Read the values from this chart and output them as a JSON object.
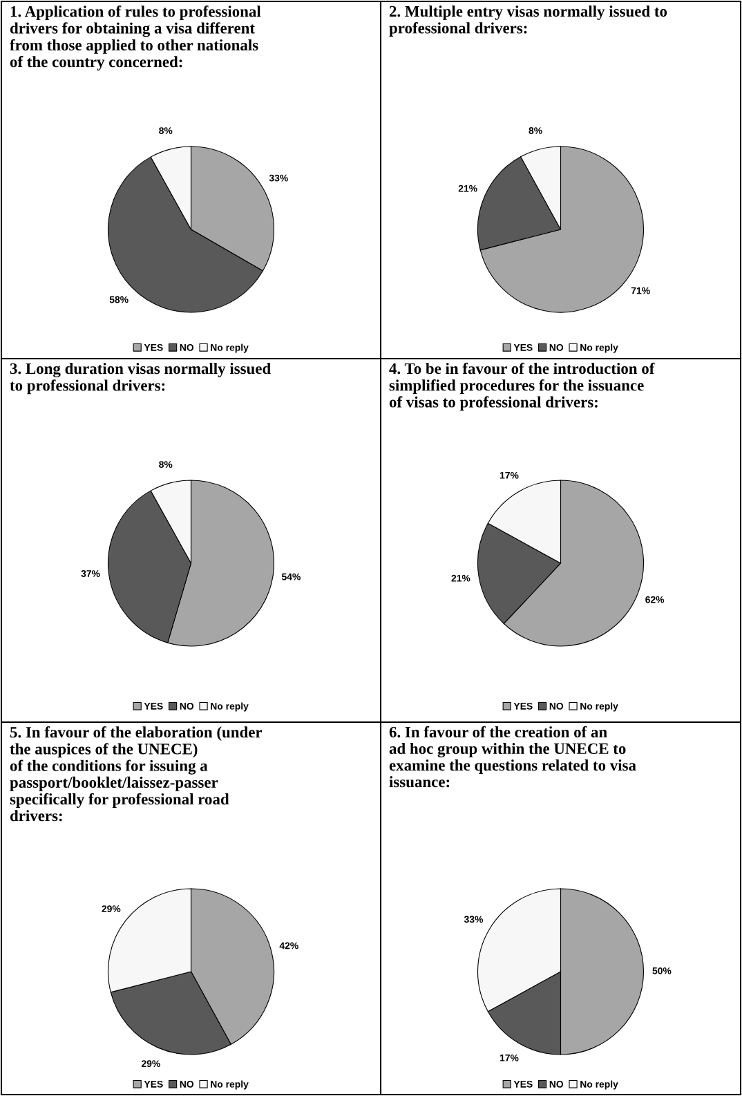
{
  "chart_data": [
    {
      "type": "pie",
      "title": "1. Application of rules to professional\ndrivers for obtaining a visa different\nfrom those applied to other nationals\nof the country concerned:",
      "categories": [
        "YES",
        "NO",
        "No reply"
      ],
      "values": [
        33,
        58,
        8
      ],
      "value_labels": [
        "33%",
        "58%",
        "8%"
      ],
      "colors": [
        "#a6a6a6",
        "#595959",
        "#f7f7f7"
      ],
      "legend": "bottom"
    },
    {
      "type": "pie",
      "title": "2. Multiple entry visas normally issued to\nprofessional drivers:",
      "categories": [
        "YES",
        "NO",
        "No reply"
      ],
      "values": [
        71,
        21,
        8
      ],
      "value_labels": [
        "71%",
        "21%",
        "8%"
      ],
      "colors": [
        "#a6a6a6",
        "#595959",
        "#f7f7f7"
      ],
      "legend": "bottom"
    },
    {
      "type": "pie",
      "title": "3. Long duration visas normally issued\nto professional drivers:",
      "categories": [
        "YES",
        "NO",
        "No reply"
      ],
      "values": [
        54,
        37,
        8
      ],
      "value_labels": [
        "54%",
        "37%",
        "8%"
      ],
      "colors": [
        "#a6a6a6",
        "#595959",
        "#f7f7f7"
      ],
      "legend": "bottom"
    },
    {
      "type": "pie",
      "title": "4. To be in favour of the introduction of\nsimplified procedures for the issuance\nof visas to professional drivers:",
      "categories": [
        "YES",
        "NO",
        "No reply"
      ],
      "values": [
        62,
        21,
        17
      ],
      "value_labels": [
        "62%",
        "21%",
        "17%"
      ],
      "colors": [
        "#a6a6a6",
        "#595959",
        "#f7f7f7"
      ],
      "legend": "bottom"
    },
    {
      "type": "pie",
      "title": "5. In favour of the elaboration (under\nthe auspices of the UNECE)\nof the conditions for issuing a\npassport/booklet/laissez-passer\nspecifically for professional road\ndrivers:",
      "categories": [
        "YES",
        "NO",
        "No reply"
      ],
      "values": [
        42,
        29,
        29
      ],
      "value_labels": [
        "42%",
        "29%",
        "29%"
      ],
      "colors": [
        "#a6a6a6",
        "#595959",
        "#f7f7f7"
      ],
      "legend": "bottom"
    },
    {
      "type": "pie",
      "title": "6. In favour of the creation of an\nad hoc group within the UNECE to\nexamine the questions related to visa\nissuance:",
      "categories": [
        "YES",
        "NO",
        "No reply"
      ],
      "values": [
        50,
        17,
        33
      ],
      "value_labels": [
        "50%",
        "17%",
        "33%"
      ],
      "colors": [
        "#a6a6a6",
        "#595959",
        "#f7f7f7"
      ],
      "legend": "bottom"
    }
  ]
}
